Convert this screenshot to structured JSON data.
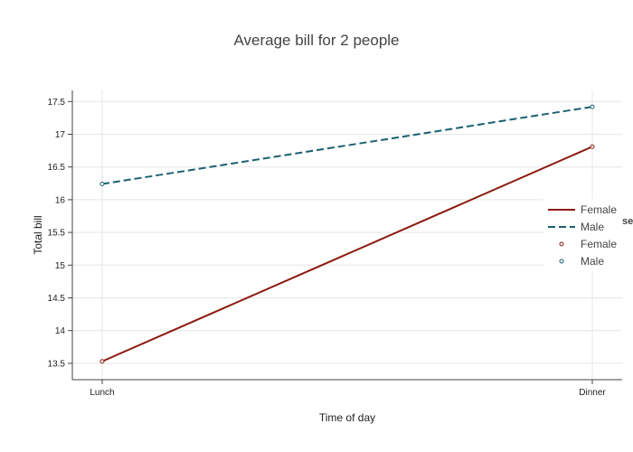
{
  "chart_data": {
    "type": "line",
    "title": "Average bill for 2 people",
    "xlabel": "Time of day",
    "ylabel": "Total bill",
    "categories": [
      "Lunch",
      "Dinner"
    ],
    "ylim": [
      13.25,
      17.67
    ],
    "yticks": [
      13.5,
      14,
      14.5,
      15,
      15.5,
      16,
      16.5,
      17,
      17.5
    ],
    "ytick_labels": [
      "13.5",
      "14",
      "14.5",
      "15",
      "15.5",
      "16",
      "16.5",
      "17",
      "17.5"
    ],
    "grid": true,
    "legend_position": "right",
    "legend_title": "se",
    "series": [
      {
        "name": "Female",
        "values": [
          13.53,
          16.81
        ],
        "color": "#8b1a0e",
        "dash": "solid",
        "marker": "circle"
      },
      {
        "name": "Male",
        "values": [
          16.24,
          17.42
        ],
        "color": "#1b6070",
        "dash": "dashed",
        "marker": "circle"
      }
    ],
    "legend": [
      {
        "label": "Female",
        "kind": "line",
        "series": 0
      },
      {
        "label": "Male",
        "kind": "line",
        "series": 1
      },
      {
        "label": "Female",
        "kind": "marker",
        "series": 0
      },
      {
        "label": "Male",
        "kind": "marker",
        "series": 1
      }
    ]
  }
}
